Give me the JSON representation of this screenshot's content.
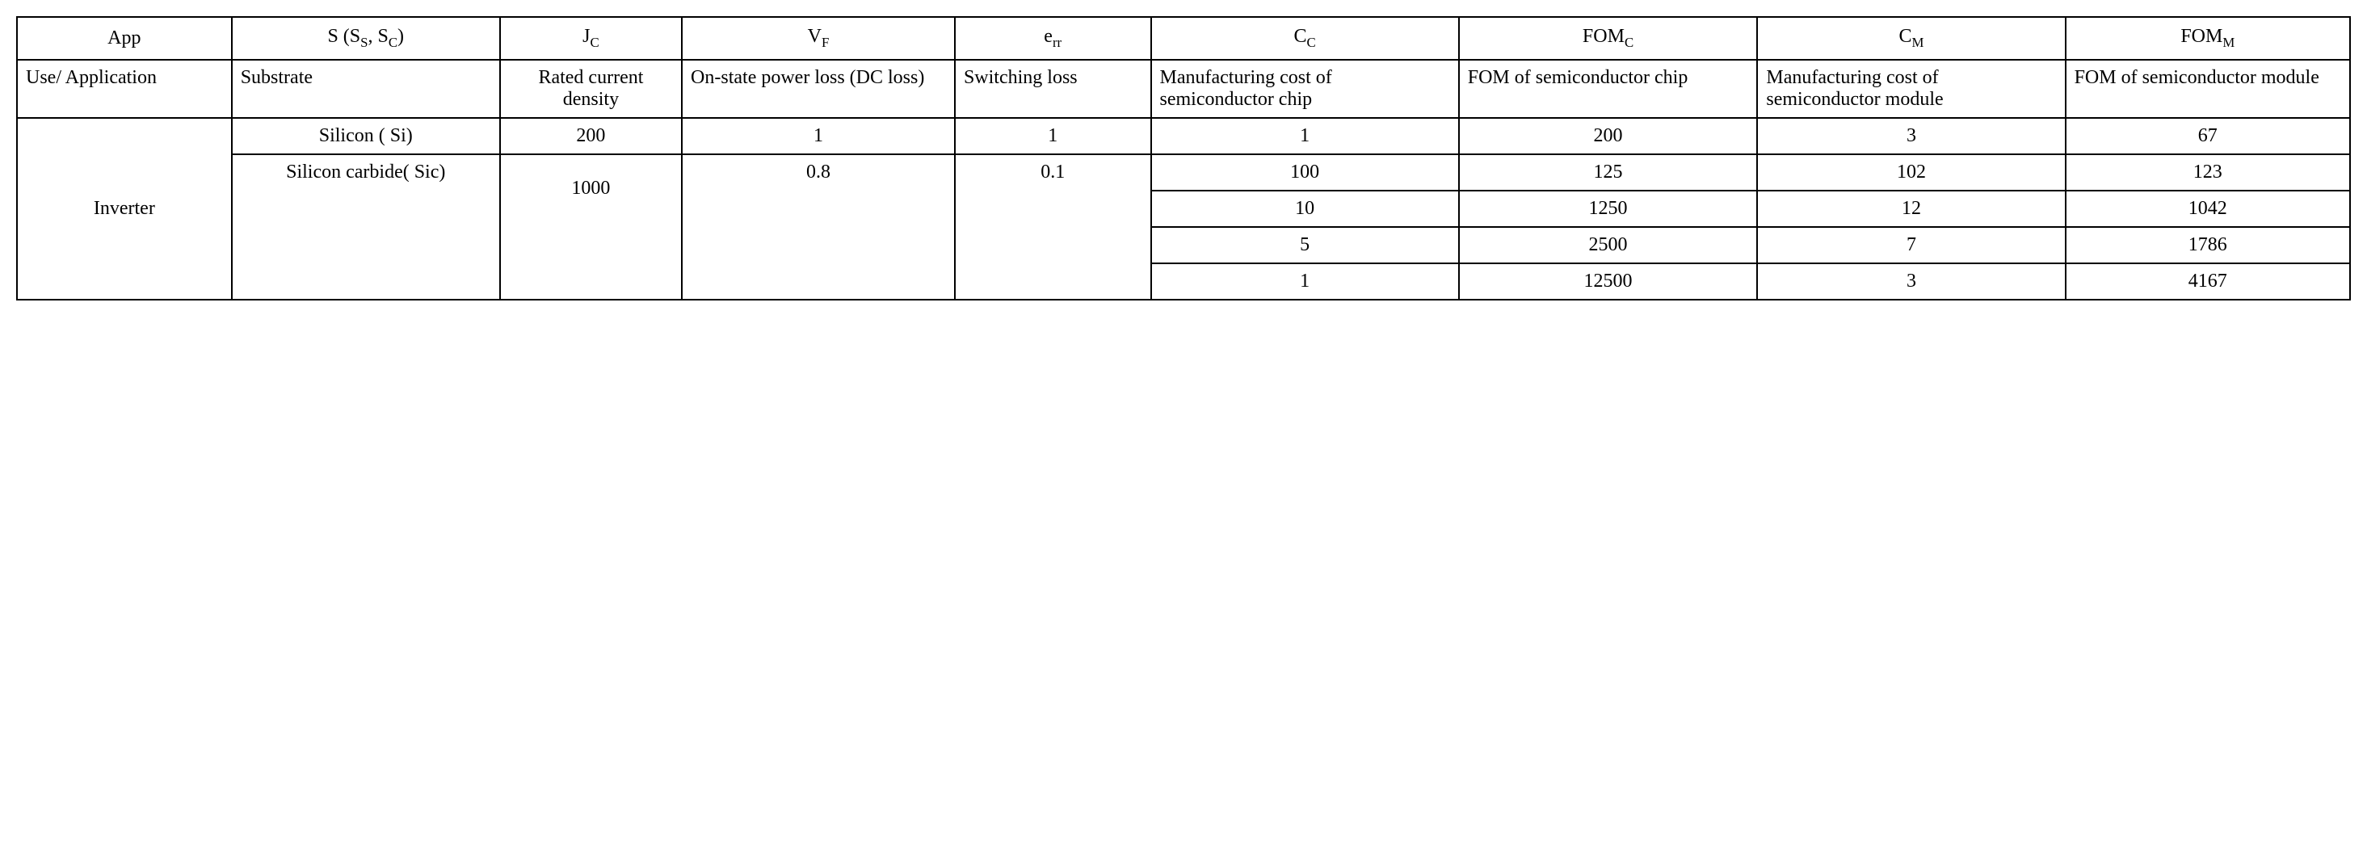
{
  "table": {
    "border_color": "#000000",
    "background_color": "#ffffff",
    "font_family": "Times New Roman",
    "header_fontsize": 24,
    "body_fontsize": 24,
    "columns": [
      {
        "key": "app",
        "header_html": "App",
        "desc": "Use/\nApplication"
      },
      {
        "key": "s",
        "header_html": "S (S<span class=\"sub\">S</span>, S<span class=\"sub\">C</span>)",
        "desc": "Substrate"
      },
      {
        "key": "jc",
        "header_html": "J<span class=\"sub\">C</span>",
        "desc": "Rated current density"
      },
      {
        "key": "vf",
        "header_html": "V<span class=\"sub\">F</span>",
        "desc": "On-state power loss\n(DC loss)"
      },
      {
        "key": "err",
        "header_html": "e<span class=\"sub\">rr</span>",
        "desc": "Switching loss"
      },
      {
        "key": "cc",
        "header_html": "C<span class=\"sub\">C</span>",
        "desc": "Manufacturing cost of semiconductor chip"
      },
      {
        "key": "fomc",
        "header_html": "FOM<span class=\"sub\">C</span>",
        "desc": "FOM of semiconductor chip"
      },
      {
        "key": "cm",
        "header_html": "C<span class=\"sub\">M</span>",
        "desc": "Manufacturing cost of semiconductor module"
      },
      {
        "key": "fomm",
        "header_html": "FOM<span class=\"sub\">M</span>",
        "desc": "FOM of semiconductor module"
      }
    ],
    "app_label": "Inverter",
    "rows": [
      {
        "substrate": "Silicon ( Si)",
        "jc": 200,
        "vf": 1,
        "err": 1,
        "cc": 1,
        "fomc": 200,
        "cm": 3,
        "fomm": 67
      },
      {
        "substrate": "Silicon carbide( Sic)",
        "jc": 1000,
        "vf": 0.8,
        "err": 0.1,
        "cc": 100,
        "fomc": 125,
        "cm": 102,
        "fomm": 123
      },
      {
        "cc": 10,
        "fomc": 1250,
        "cm": 12,
        "fomm": 1042
      },
      {
        "cc": 5,
        "fomc": 2500,
        "cm": 7,
        "fomm": 1786
      },
      {
        "cc": 1,
        "fomc": 12500,
        "cm": 3,
        "fomm": 4167
      }
    ]
  }
}
